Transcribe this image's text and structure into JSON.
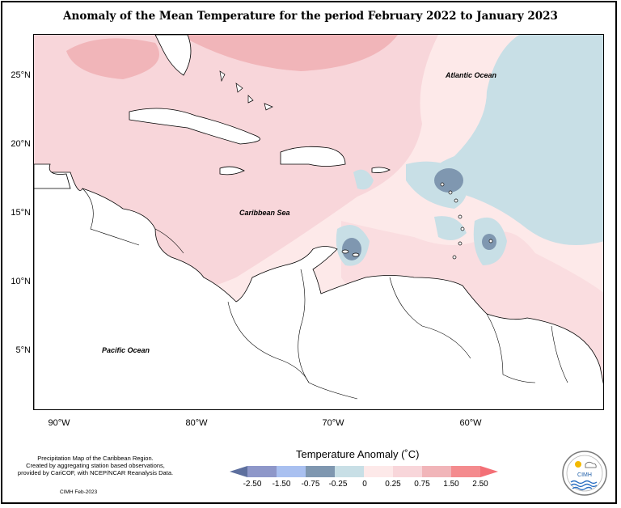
{
  "title": "Anomaly of the Mean Temperature for the period February 2022 to January 2023",
  "axes": {
    "y_labels": [
      "25°N",
      "20°N",
      "15°N",
      "10°N",
      "5°N"
    ],
    "x_labels": [
      "90°W",
      "80°W",
      "70°W",
      "60°W"
    ]
  },
  "map_labels": {
    "atlantic": "Atlantic Ocean",
    "caribbean": "Caribbean Sea",
    "pacific": "Pacific Ocean"
  },
  "legend": {
    "title": "Temperature Anomaly (˚C)",
    "labels": [
      "-2.50",
      "-1.50",
      "-0.75",
      "-0.25",
      "0",
      "0.25",
      "0.75",
      "1.50",
      "2.50"
    ],
    "colors": [
      "#5d6f9e",
      "#8e97c9",
      "#a9c0f0",
      "#7f97b0",
      "#c8dfe6",
      "#fde9e9",
      "#f8d6da",
      "#f1b5b9",
      "#f48b8e",
      "#f36f76"
    ]
  },
  "footnote": {
    "line1": "Precipitation Map of the Caribbean Region.",
    "line2": "Created by aggregating station based observations,",
    "line3": "provided by CariCOF, with NCEP/NCAR Reanalysis Data."
  },
  "credit": "CIMH Feb-2023",
  "logo": {
    "text": "CIMH",
    "name": "cimh-logo"
  }
}
